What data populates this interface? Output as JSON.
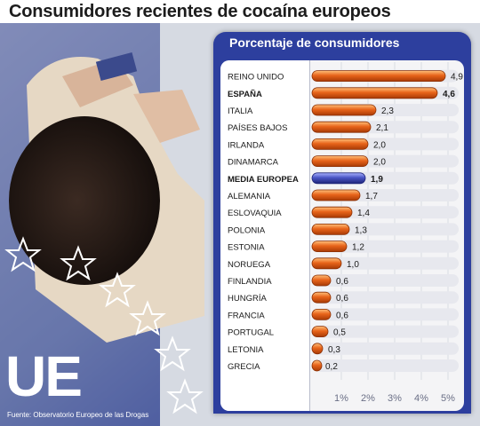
{
  "title": "Consumidores recientes de cocaína europeos",
  "panel_heading": "Porcentaje de consumidores",
  "badge": "UE",
  "source": "Fuente: Observatorio Europeo de las Drogas",
  "colors": {
    "bar": "#e8641a",
    "highlight_bar": "#4a55c4",
    "panel": "#2d3f9e"
  },
  "chart_data": {
    "type": "bar",
    "orientation": "horizontal",
    "categories": [
      "REINO UNIDO",
      "ESPAÑA",
      "ITALIA",
      "PAÍSES BAJOS",
      "IRLANDA",
      "DINAMARCA",
      "MEDIA EUROPEA",
      "ALEMANIA",
      "ESLOVAQUIA",
      "POLONIA",
      "ESTONIA",
      "NORUEGA",
      "FINLANDIA",
      "HUNGRÍA",
      "FRANCIA",
      "PORTUGAL",
      "LETONIA",
      "GRECIA"
    ],
    "values": [
      4.9,
      4.6,
      2.3,
      2.1,
      2.0,
      2.0,
      1.9,
      1.7,
      1.4,
      1.3,
      1.2,
      1.0,
      0.6,
      0.6,
      0.6,
      0.5,
      0.3,
      0.2
    ],
    "value_labels": [
      "4,9",
      "4,6",
      "2,3",
      "2,1",
      "2,0",
      "2,0",
      "1,9",
      "1,7",
      "1,4",
      "1,3",
      "1,2",
      "1,0",
      "0,6",
      "0,6",
      "0,6",
      "0,5",
      "0,3",
      "0,2"
    ],
    "bold_categories": [
      "ESPAÑA",
      "MEDIA EUROPEA"
    ],
    "highlight": "MEDIA EUROPEA",
    "xticks": [
      "1%",
      "2%",
      "3%",
      "4%",
      "5%"
    ],
    "xtick_values": [
      1,
      2,
      3,
      4,
      5
    ],
    "xlim": [
      0,
      5
    ],
    "title": "Porcentaje de consumidores",
    "xlabel": "",
    "ylabel": ""
  }
}
